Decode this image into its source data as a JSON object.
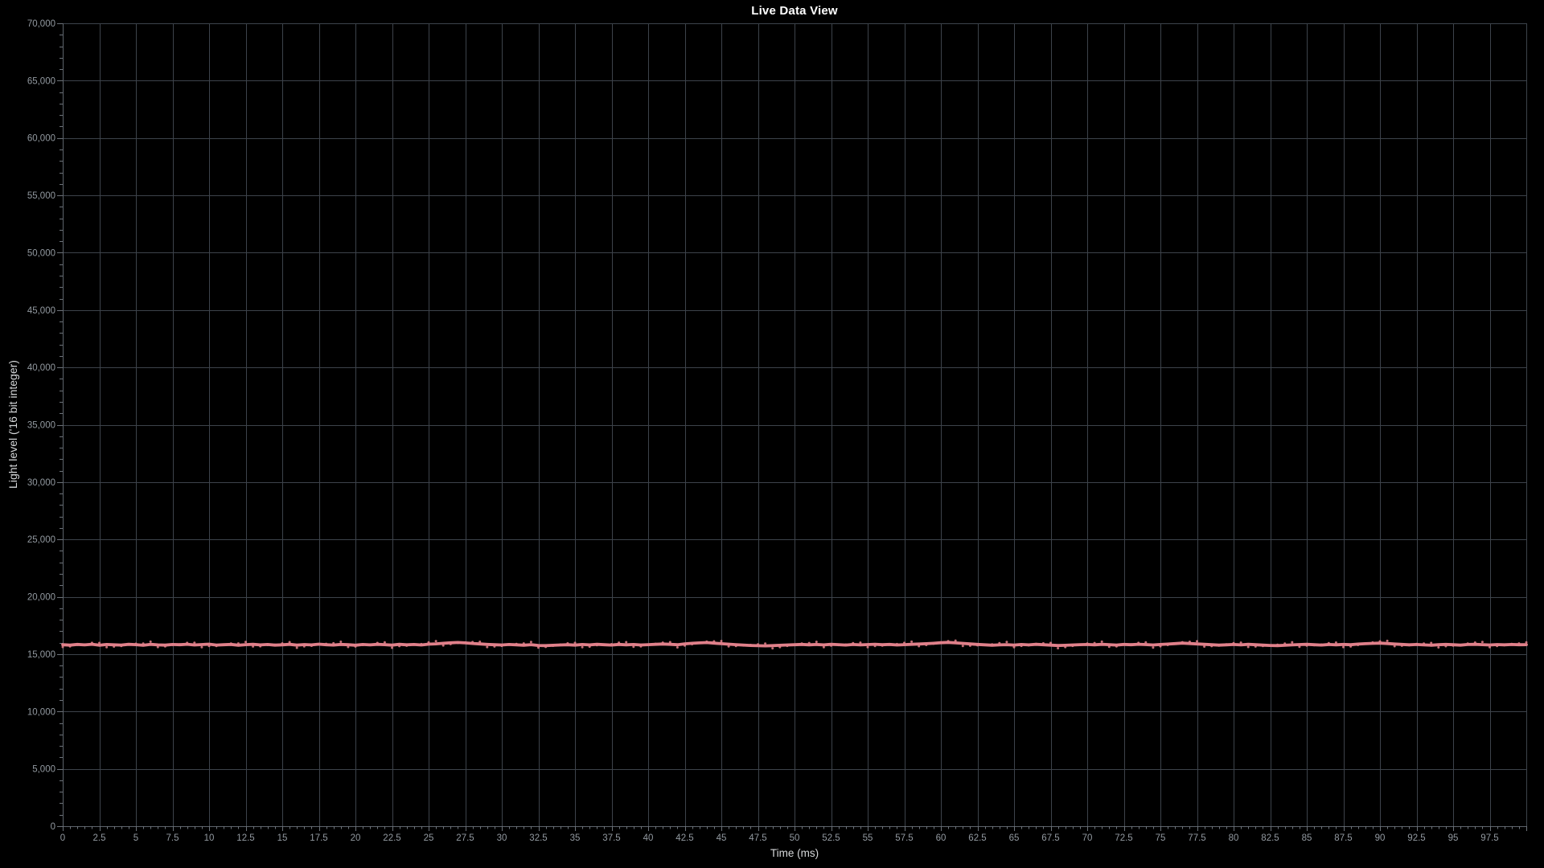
{
  "chart": {
    "title": "Live Data View",
    "x_axis_title": "Time (ms)",
    "y_axis_title": "Light level ('16 bit integer)"
  },
  "colors": {
    "background": "#000000",
    "gridline": "#3d434b",
    "axis_line": "#5d636b",
    "tick": "#6d737a",
    "tick_label": "#9299a0",
    "axis_title": "#d6d8da",
    "chart_title": "#ffffff",
    "series_line": "#e0808a"
  },
  "chart_data": {
    "type": "line",
    "title": "Live Data View",
    "xlabel": "Time (ms)",
    "ylabel": "Light level ('16 bit integer)",
    "xlim": [
      0,
      100
    ],
    "ylim": [
      0,
      70000
    ],
    "x_major_step": 2.5,
    "x_minor_step": 0.5,
    "y_major_step": 5000,
    "y_minor_step": 1000,
    "grid": true,
    "legend": "none",
    "series": [
      {
        "name": "Light level",
        "x_start": 0,
        "x_step": 0.5,
        "values": [
          15820,
          15790,
          15850,
          15805,
          15865,
          15780,
          15840,
          15815,
          15795,
          15860,
          15830,
          15775,
          15855,
          15810,
          15790,
          15845,
          15820,
          15865,
          15800,
          15835,
          15870,
          15795,
          15825,
          15850,
          15780,
          15830,
          15860,
          15805,
          15840,
          15785,
          15815,
          15855,
          15790,
          15835,
          15810,
          15870,
          15825,
          15795,
          15850,
          15820,
          15780,
          15840,
          15805,
          15860,
          15830,
          15790,
          15855,
          15815,
          15845,
          15800,
          15870,
          15900,
          15950,
          15990,
          16020,
          15980,
          15935,
          15890,
          15850,
          15820,
          15800,
          15840,
          15815,
          15780,
          15830,
          15760,
          15745,
          15770,
          15800,
          15825,
          15790,
          15845,
          15810,
          15860,
          15825,
          15795,
          15850,
          15815,
          15840,
          15800,
          15830,
          15860,
          15885,
          15855,
          15820,
          15900,
          15945,
          15985,
          16010,
          15960,
          15915,
          15870,
          15830,
          15795,
          15760,
          15740,
          15725,
          15745,
          15770,
          15800,
          15820,
          15850,
          15815,
          15840,
          15805,
          15860,
          15830,
          15795,
          15845,
          15810,
          15835,
          15865,
          15820,
          15850,
          15800,
          15830,
          15855,
          15885,
          15915,
          15950,
          15995,
          16025,
          15985,
          15940,
          15895,
          15850,
          15815,
          15780,
          15805,
          15830,
          15795,
          15840,
          15810,
          15855,
          15825,
          15785,
          15750,
          15770,
          15800,
          15830,
          15845,
          15815,
          15860,
          15830,
          15795,
          15850,
          15820,
          15865,
          15835,
          15800,
          15840,
          15880,
          15920,
          15960,
          15930,
          15890,
          15855,
          15820,
          15790,
          15815,
          15845,
          15810,
          15855,
          15825,
          15790,
          15760,
          15745,
          15775,
          15805,
          15835,
          15860,
          15825,
          15795,
          15845,
          15815,
          15850,
          15820,
          15880,
          15910,
          15940,
          15965,
          15925,
          15885,
          15850,
          15815,
          15845,
          15810,
          15780,
          15820,
          15850,
          15825,
          15790,
          15840,
          15860,
          15830,
          15800,
          15835,
          15815,
          15845,
          15820,
          15830
        ]
      }
    ]
  }
}
